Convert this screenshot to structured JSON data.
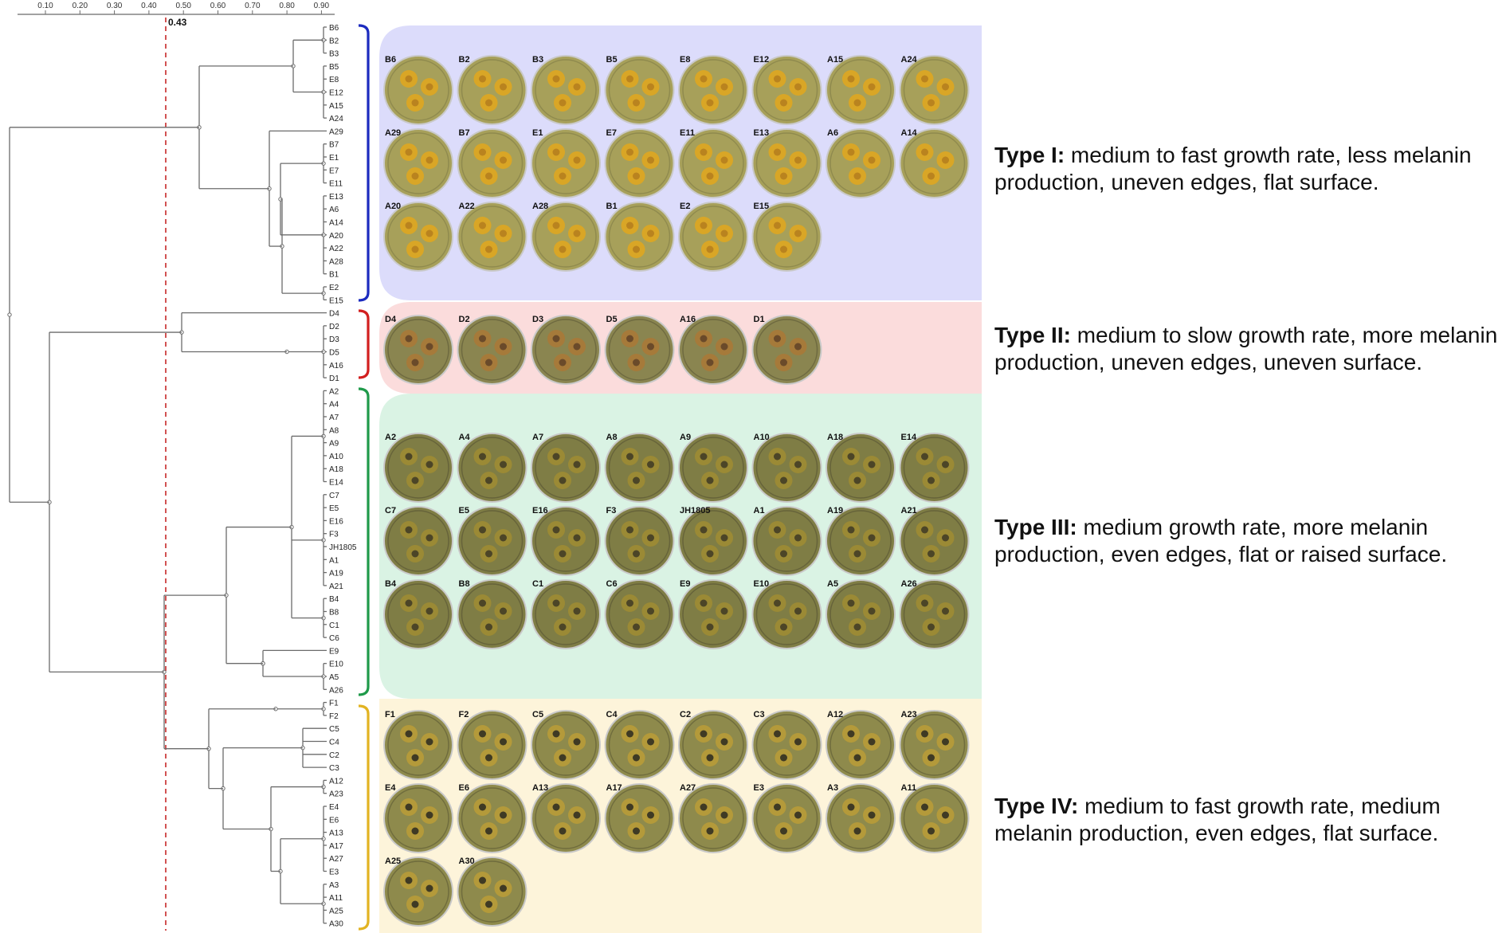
{
  "scale": {
    "ticks": [
      "0.10",
      "0.20",
      "0.30",
      "0.40",
      "0.50",
      "0.60",
      "0.70",
      "0.80",
      "0.90"
    ],
    "cutoff_label": "0.43"
  },
  "leaves": [
    "B6",
    "B2",
    "B3",
    "B5",
    "E8",
    "E12",
    "A15",
    "A24",
    "A29",
    "B7",
    "E1",
    "E7",
    "E11",
    "E13",
    "A6",
    "A14",
    "A20",
    "A22",
    "A28",
    "B1",
    "E2",
    "E15",
    "D4",
    "D2",
    "D3",
    "D5",
    "A16",
    "D1",
    "A2",
    "A4",
    "A7",
    "A8",
    "A9",
    "A10",
    "A18",
    "E14",
    "C7",
    "E5",
    "E16",
    "F3",
    "JH1805",
    "A1",
    "A19",
    "A21",
    "B4",
    "B8",
    "C1",
    "C6",
    "E9",
    "E10",
    "A5",
    "A26",
    "F1",
    "F2",
    "C5",
    "C4",
    "C2",
    "C3",
    "A12",
    "A23",
    "E4",
    "E6",
    "A13",
    "A17",
    "A27",
    "E3",
    "A3",
    "A11",
    "A25",
    "A30"
  ],
  "groups": [
    {
      "name": "Type I",
      "band": "#dcdcfb",
      "bracket": "#1c2bbf",
      "rows": [
        [
          "B6",
          "B2",
          "B3",
          "B5",
          "E8",
          "E12",
          "A15",
          "A24"
        ],
        [
          "A29",
          "B7",
          "E1",
          "E7",
          "E11",
          "E13",
          "A6",
          "A14"
        ],
        [
          "A20",
          "A22",
          "A28",
          "B1",
          "E2",
          "E15"
        ]
      ],
      "label_bold": "Type I:",
      "label_rest": " medium to fast growth rate, less melanin production, uneven edges, flat surface."
    },
    {
      "name": "Type II",
      "band": "#fbdcdc",
      "bracket": "#d21f1f",
      "rows": [
        [
          "D4",
          "D2",
          "D3",
          "D5",
          "A16",
          "D1"
        ]
      ],
      "label_bold": "Type II:",
      "label_rest": " medium to slow growth rate, more melanin production, uneven edges, uneven surface."
    },
    {
      "name": "Type III",
      "band": "#daf3e4",
      "bracket": "#1f9a4a",
      "rows": [
        [
          "A2",
          "A4",
          "A7",
          "A8",
          "A9",
          "A10",
          "A18",
          "E14"
        ],
        [
          "C7",
          "E5",
          "E16",
          "F3",
          "JH1805",
          "A1",
          "A19",
          "A21"
        ],
        [
          "B4",
          "B8",
          "C1",
          "C6",
          "E9",
          "E10",
          "A5",
          "A26"
        ]
      ],
      "label_bold": "Type III:",
      "label_rest": " medium growth rate, more melanin production, even edges, flat or raised surface."
    },
    {
      "name": "Type IV",
      "band": "#fdf4da",
      "bracket": "#e2b322",
      "rows": [
        [
          "F1",
          "F2",
          "C5",
          "C4",
          "C2",
          "C3",
          "A12",
          "A23"
        ],
        [
          "E4",
          "E6",
          "A13",
          "A17",
          "A27",
          "E3",
          "A3",
          "A11"
        ],
        [
          "A25",
          "A30"
        ]
      ],
      "label_bold": "Type IV:",
      "label_rest": " medium to fast growth rate, medium melanin production, even edges, flat surface."
    }
  ],
  "colors": {
    "tree_line": "#6b6b6b",
    "cutoff_line": "#c62828",
    "label_text": "#222222"
  }
}
